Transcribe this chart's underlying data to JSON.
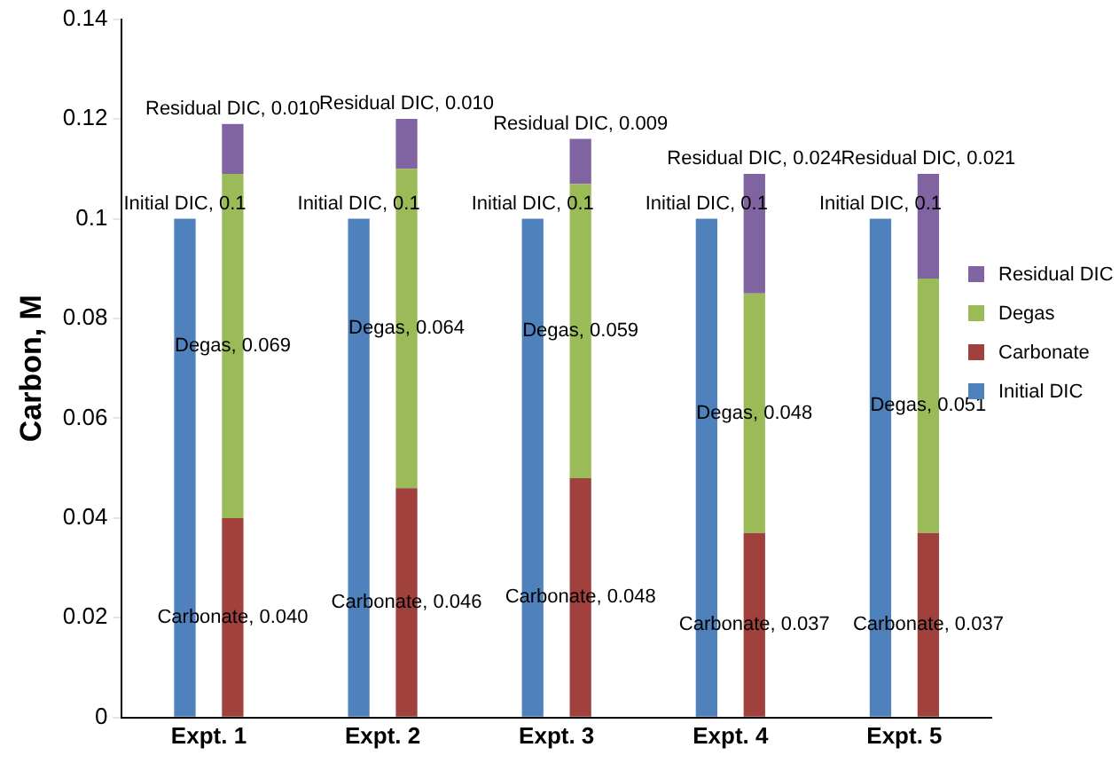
{
  "chart_data": {
    "type": "bar",
    "ylabel": "Carbon, M",
    "categories": [
      "Expt. 1",
      "Expt. 2",
      "Expt. 3",
      "Expt. 4",
      "Expt. 5"
    ],
    "ylim": [
      0,
      0.14
    ],
    "yticks": [
      0,
      0.02,
      0.04,
      0.06,
      0.08,
      0.1,
      0.12,
      0.14
    ],
    "grid": false,
    "legend": "right",
    "series": [
      {
        "name": "Initial DIC",
        "color": "#4f81bd",
        "values": [
          0.1,
          0.1,
          0.1,
          0.1,
          0.1
        ],
        "value_labels": [
          "Initial DIC, 0.1",
          "Initial DIC, 0.1",
          "Initial DIC, 0.1",
          "Initial DIC, 0.1",
          "Initial DIC, 0.1"
        ]
      },
      {
        "name": "Carbonate",
        "color": "#a0413d",
        "base": [
          0,
          0,
          0,
          0,
          0
        ],
        "values": [
          0.04,
          0.046,
          0.048,
          0.037,
          0.037
        ],
        "value_labels": [
          "Carbonate, 0.040",
          "Carbonate, 0.046",
          "Carbonate, 0.048",
          "Carbonate, 0.037",
          "Carbonate, 0.037"
        ]
      },
      {
        "name": "Degas",
        "color": "#9bbb59",
        "base": [
          0.04,
          0.046,
          0.048,
          0.037,
          0.037
        ],
        "values": [
          0.069,
          0.064,
          0.059,
          0.048,
          0.051
        ],
        "value_labels": [
          "Degas, 0.069",
          "Degas, 0.064",
          "Degas, 0.059",
          "Degas, 0.048",
          "Degas, 0.051"
        ]
      },
      {
        "name": "Residual DIC",
        "color": "#8064a2",
        "base": [
          0.109,
          0.11,
          0.107,
          0.085,
          0.088
        ],
        "values": [
          0.01,
          0.01,
          0.009,
          0.024,
          0.021
        ],
        "value_labels": [
          "Residual DIC, 0.010",
          "Residual DIC, 0.010",
          "Residual DIC, 0.009",
          "Residual DIC, 0.024",
          "Residual DIC, 0.021"
        ]
      }
    ]
  }
}
